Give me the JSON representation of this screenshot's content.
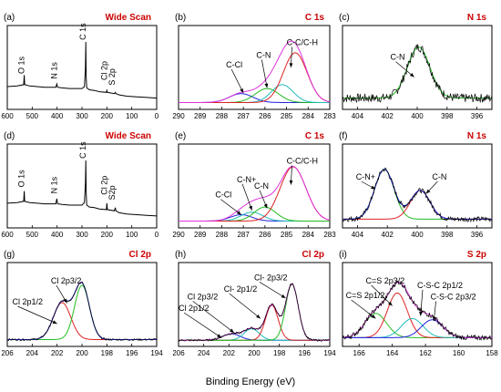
{
  "figure": {
    "xlabel": "Binding Energy (eV)"
  },
  "chart_data": [
    {
      "panel": "(a)",
      "title": "Wide Scan",
      "title_color": "#cc0000",
      "type": "line",
      "xlim": [
        600,
        0
      ],
      "xticks": [
        600,
        500,
        400,
        300,
        200,
        100,
        0
      ],
      "annotations": [
        {
          "text": "O 1s",
          "x": 532,
          "y": 0.5,
          "rotate": true
        },
        {
          "text": "N 1s",
          "x": 400,
          "y": 0.42,
          "rotate": true
        },
        {
          "text": "C 1s",
          "x": 285,
          "y": 1.03,
          "rotate": true
        },
        {
          "text": "Cl 2p",
          "x": 200,
          "y": 0.4,
          "rotate": true
        },
        {
          "text": "S 2p",
          "x": 168,
          "y": 0.32,
          "rotate": true
        }
      ],
      "series": [
        {
          "color": "#000000",
          "x": [
            600,
            560,
            534,
            532,
            530,
            510,
            480,
            450,
            405,
            401,
            398,
            380,
            350,
            300,
            290,
            286,
            284.5,
            283,
            281,
            270,
            250,
            230,
            202,
            200,
            198,
            170,
            166,
            164,
            150,
            120,
            80,
            40,
            0
          ],
          "values": [
            0.3,
            0.31,
            0.33,
            0.48,
            0.33,
            0.31,
            0.3,
            0.29,
            0.29,
            0.34,
            0.29,
            0.28,
            0.27,
            0.27,
            0.3,
            0.6,
            1.0,
            0.45,
            0.28,
            0.25,
            0.24,
            0.22,
            0.21,
            0.24,
            0.21,
            0.19,
            0.21,
            0.19,
            0.17,
            0.15,
            0.14,
            0.13,
            0.12
          ]
        }
      ]
    },
    {
      "panel": "(b)",
      "title": "C 1s",
      "title_color": "#cc0000",
      "type": "line",
      "xlim": [
        290,
        283
      ],
      "xticks": [
        290,
        289,
        288,
        287,
        286,
        285,
        284,
        283
      ],
      "annotations": [
        {
          "text": "C-Cl",
          "x": 287.8,
          "y": 0.6,
          "ax": 287.0,
          "ay": 0.2
        },
        {
          "text": "C-N",
          "x": 286.4,
          "y": 0.75,
          "ax": 285.9,
          "ay": 0.28
        },
        {
          "text": "C-C/C-H",
          "x": 285.0,
          "y": 0.95,
          "ax": 284.8,
          "ay": 0.6
        }
      ],
      "series": [
        {
          "color": "#2222dd",
          "peak": {
            "center": 287.1,
            "height": 0.14,
            "width": 0.55
          }
        },
        {
          "color": "#22bb22",
          "peak": {
            "center": 285.9,
            "height": 0.22,
            "width": 0.55
          }
        },
        {
          "color": "#22bbbb",
          "peak": {
            "center": 285.2,
            "height": 0.28,
            "width": 0.5
          }
        },
        {
          "color": "#dd2222",
          "peak": {
            "center": 284.6,
            "height": 0.78,
            "width": 0.55
          }
        },
        {
          "color": "#dd33dd",
          "envelope": true
        }
      ],
      "baseline": 0.05,
      "noise": 0.0
    },
    {
      "panel": "(c)",
      "title": "N 1s",
      "title_color": "#cc0000",
      "type": "line",
      "xlim": [
        405,
        395
      ],
      "xticks": [
        404,
        402,
        400,
        398,
        396
      ],
      "annotations": [
        {
          "text": "C-N",
          "x": 401.8,
          "y": 0.72,
          "ax": 400.2,
          "ay": 0.45
        }
      ],
      "series": [
        {
          "color": "#22bb22",
          "peak": {
            "center": 399.9,
            "height": 0.8,
            "width": 0.75
          }
        },
        {
          "color": "#000000",
          "noisy": true
        }
      ],
      "baseline": 0.12,
      "noise": 0.07
    },
    {
      "panel": "(d)",
      "title": "Wide Scan",
      "title_color": "#cc0000",
      "type": "line",
      "xlim": [
        600,
        0
      ],
      "xticks": [
        600,
        500,
        400,
        300,
        200,
        100,
        0
      ],
      "annotations": [
        {
          "text": "O 1s",
          "x": 532,
          "y": 0.58,
          "rotate": true
        },
        {
          "text": "N 1s",
          "x": 400,
          "y": 0.48,
          "rotate": true
        },
        {
          "text": "C 1s",
          "x": 285,
          "y": 1.03,
          "rotate": true
        },
        {
          "text": "Cl 2p",
          "x": 200,
          "y": 0.46,
          "rotate": true
        },
        {
          "text": "S2p",
          "x": 168,
          "y": 0.38,
          "rotate": true
        }
      ],
      "series": [
        {
          "color": "#000000",
          "x": [
            600,
            560,
            534,
            532,
            530,
            510,
            480,
            450,
            405,
            401,
            398,
            380,
            350,
            300,
            290,
            286,
            284.5,
            283,
            281,
            270,
            250,
            230,
            202,
            200,
            198,
            170,
            166,
            164,
            150,
            120,
            80,
            40,
            0
          ],
          "values": [
            0.33,
            0.34,
            0.36,
            0.52,
            0.36,
            0.34,
            0.33,
            0.32,
            0.32,
            0.4,
            0.32,
            0.31,
            0.3,
            0.3,
            0.34,
            0.65,
            1.0,
            0.5,
            0.3,
            0.27,
            0.26,
            0.24,
            0.23,
            0.33,
            0.23,
            0.21,
            0.26,
            0.21,
            0.18,
            0.16,
            0.15,
            0.14,
            0.13
          ]
        }
      ]
    },
    {
      "panel": "(e)",
      "title": "C 1s",
      "title_color": "#cc0000",
      "type": "line",
      "xlim": [
        290,
        283
      ],
      "xticks": [
        290,
        289,
        288,
        287,
        286,
        285,
        284,
        283
      ],
      "annotations": [
        {
          "text": "C-Cl",
          "x": 288.3,
          "y": 0.42,
          "ax": 287.1,
          "ay": 0.15
        },
        {
          "text": "C-N+",
          "x": 287.3,
          "y": 0.66,
          "ax": 286.6,
          "ay": 0.22
        },
        {
          "text": "C-N",
          "x": 286.5,
          "y": 0.56,
          "ax": 285.9,
          "ay": 0.25
        },
        {
          "text": "C-C/C-H",
          "x": 285.0,
          "y": 0.95,
          "ax": 284.8,
          "ay": 0.62
        }
      ],
      "series": [
        {
          "color": "#2222dd",
          "peak": {
            "center": 287.1,
            "height": 0.1,
            "width": 0.5
          }
        },
        {
          "color": "#22bbbb",
          "peak": {
            "center": 286.6,
            "height": 0.14,
            "width": 0.5
          }
        },
        {
          "color": "#22bb22",
          "peak": {
            "center": 286.0,
            "height": 0.22,
            "width": 0.5
          }
        },
        {
          "color": "#dd2222",
          "peak": {
            "center": 284.7,
            "height": 0.85,
            "width": 0.6
          }
        },
        {
          "color": "#dd33dd",
          "envelope": true
        }
      ],
      "baseline": 0.05,
      "noise": 0.0
    },
    {
      "panel": "(f)",
      "title": "N 1s",
      "title_color": "#cc0000",
      "type": "line",
      "xlim": [
        405,
        395
      ],
      "xticks": [
        404,
        402,
        400,
        398,
        396
      ],
      "annotations": [
        {
          "text": "C-N+",
          "x": 404.1,
          "y": 0.7,
          "ax": 402.8,
          "ay": 0.55
        },
        {
          "text": "C-N",
          "x": 399.0,
          "y": 0.7,
          "ax": 399.4,
          "ay": 0.48
        }
      ],
      "series": [
        {
          "color": "#22bb22",
          "peak": {
            "center": 402.2,
            "height": 0.78,
            "width": 0.65
          }
        },
        {
          "color": "#dd2222",
          "peak": {
            "center": 399.8,
            "height": 0.45,
            "width": 0.65
          }
        },
        {
          "color": "#2222dd",
          "envelope": true
        },
        {
          "color": "#000000",
          "noisy": true
        }
      ],
      "baseline": 0.08,
      "noise": 0.04
    },
    {
      "panel": "(g)",
      "title": "Cl 2p",
      "title_color": "#cc0000",
      "type": "line",
      "xlim": [
        206,
        194
      ],
      "xticks": [
        206,
        204,
        202,
        200,
        198,
        196,
        194
      ],
      "annotations": [
        {
          "text": "Cl 2p3/2",
          "x": 202.5,
          "y": 0.93,
          "ax": 201.2,
          "ay": 0.62
        },
        {
          "text": "Cl 2p1/2",
          "x": 205.6,
          "y": 0.6,
          "ax": 202.0,
          "ay": 0.3
        }
      ],
      "series": [
        {
          "color": "#dd2222",
          "peak": {
            "center": 201.6,
            "height": 0.58,
            "width": 0.7
          }
        },
        {
          "color": "#22bb22",
          "peak": {
            "center": 200.0,
            "height": 0.85,
            "width": 0.6
          }
        },
        {
          "color": "#2222dd",
          "envelope": true
        },
        {
          "color": "#000000",
          "noisy": true
        }
      ],
      "baseline": 0.05,
      "noise": 0.015
    },
    {
      "panel": "(h)",
      "title": "Cl 2p",
      "title_color": "#cc0000",
      "type": "line",
      "xlim": [
        206,
        194
      ],
      "xticks": [
        206,
        204,
        202,
        200,
        198,
        196,
        194
      ],
      "annotations": [
        {
          "text": "Cl- 2p3/2",
          "x": 200.0,
          "y": 0.98,
          "ax": 197.5,
          "ay": 0.7
        },
        {
          "text": "Cl- 2p1/2",
          "x": 202.4,
          "y": 0.8,
          "ax": 199.5,
          "ay": 0.38
        },
        {
          "text": "Cl 2p3/2",
          "x": 205.3,
          "y": 0.68,
          "ax": 201.6,
          "ay": 0.16
        },
        {
          "text": "Cl 2p1/2",
          "x": 206.0,
          "y": 0.5,
          "ax": 202.6,
          "ay": 0.08
        }
      ],
      "series": [
        {
          "color": "#2222dd",
          "peak": {
            "center": 201.8,
            "height": 0.1,
            "width": 0.7
          }
        },
        {
          "color": "#22bbbb",
          "peak": {
            "center": 200.2,
            "height": 0.18,
            "width": 0.6
          }
        },
        {
          "color": "#dd2222",
          "peak": {
            "center": 198.6,
            "height": 0.55,
            "width": 0.5
          }
        },
        {
          "color": "#22bb22",
          "peak": {
            "center": 197.0,
            "height": 0.88,
            "width": 0.5
          }
        },
        {
          "color": "#dd33dd",
          "envelope": true
        },
        {
          "color": "#000000",
          "noisy": true
        }
      ],
      "baseline": 0.04,
      "noise": 0.015
    },
    {
      "panel": "(i)",
      "title": "S 2p",
      "title_color": "#cc0000",
      "type": "line",
      "xlim": [
        167,
        158
      ],
      "xticks": [
        166,
        164,
        162,
        160,
        158
      ],
      "annotations": [
        {
          "text": "C=S 2p3/2",
          "x": 165.6,
          "y": 0.93,
          "ax": 164.0,
          "ay": 0.58
        },
        {
          "text": "C=S 2p1/2",
          "x": 166.8,
          "y": 0.7,
          "ax": 165.0,
          "ay": 0.38
        },
        {
          "text": "C-S-C 2p1/2",
          "x": 162.5,
          "y": 0.86,
          "ax": 162.3,
          "ay": 0.42
        },
        {
          "text": "C-S-C 2p3/2",
          "x": 161.7,
          "y": 0.68,
          "ax": 161.5,
          "ay": 0.34
        }
      ],
      "series": [
        {
          "color": "#22bb22",
          "peak": {
            "center": 165.0,
            "height": 0.38,
            "width": 0.65
          }
        },
        {
          "color": "#dd2222",
          "peak": {
            "center": 163.7,
            "height": 0.7,
            "width": 0.6
          }
        },
        {
          "color": "#22bbbb",
          "peak": {
            "center": 162.8,
            "height": 0.3,
            "width": 0.65
          }
        },
        {
          "color": "#2222dd",
          "peak": {
            "center": 161.6,
            "height": 0.28,
            "width": 0.65
          }
        },
        {
          "color": "#dd33dd",
          "envelope": true
        },
        {
          "color": "#000000",
          "noisy": true
        }
      ],
      "baseline": 0.08,
      "noise": 0.04
    }
  ]
}
